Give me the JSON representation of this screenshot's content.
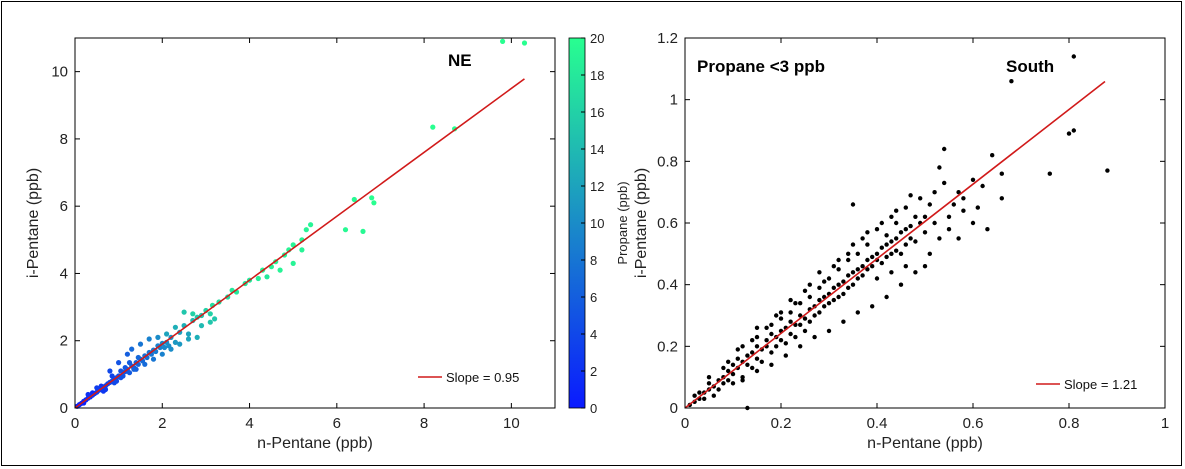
{
  "chart_data": [
    {
      "type": "scatter",
      "xlabel": "n-Pentane (ppb)",
      "ylabel": "i-Pentane (ppb)",
      "xlim": [
        0,
        11
      ],
      "ylim": [
        0,
        11
      ],
      "xticks": [
        "0",
        "2",
        "4",
        "6",
        "8",
        "10"
      ],
      "yticks": [
        "0",
        "2",
        "4",
        "6",
        "8",
        "10"
      ],
      "annotation": "NE",
      "colorbar": {
        "label": "Propane (ppb)",
        "range": [
          0,
          20
        ],
        "ticks": [
          "0",
          "2",
          "4",
          "6",
          "8",
          "10",
          "12",
          "14",
          "16",
          "18",
          "20"
        ],
        "color_low": "#0a1aff",
        "color_high": "#28ff90"
      },
      "fit": {
        "slope": 0.95,
        "x_range": [
          0,
          10.3
        ],
        "color": "#d11a1a",
        "legend_label": "Slope = 0.95"
      },
      "points": [
        [
          0.05,
          0.05,
          0.5
        ],
        [
          0.1,
          0.1,
          0.7
        ],
        [
          0.15,
          0.14,
          0.8
        ],
        [
          0.2,
          0.2,
          1
        ],
        [
          0.25,
          0.24,
          1.2
        ],
        [
          0.3,
          0.29,
          1.4
        ],
        [
          0.35,
          0.33,
          1.6
        ],
        [
          0.4,
          0.38,
          2
        ],
        [
          0.45,
          0.43,
          2.2
        ],
        [
          0.5,
          0.47,
          2.5
        ],
        [
          0.55,
          0.53,
          2.8
        ],
        [
          0.6,
          0.56,
          3
        ],
        [
          0.65,
          0.62,
          3.1
        ],
        [
          0.7,
          0.66,
          3.3
        ],
        [
          0.75,
          0.72,
          3.5
        ],
        [
          0.8,
          0.76,
          3.8
        ],
        [
          0.85,
          0.8,
          4
        ],
        [
          0.9,
          0.86,
          4.2
        ],
        [
          0.95,
          0.9,
          4.4
        ],
        [
          1.0,
          0.95,
          4.6
        ],
        [
          0.3,
          0.4,
          2
        ],
        [
          0.5,
          0.6,
          3
        ],
        [
          0.7,
          0.55,
          3
        ],
        [
          0.9,
          0.75,
          4
        ],
        [
          1.05,
          1.1,
          5
        ],
        [
          1.1,
          0.95,
          5
        ],
        [
          1.15,
          1.08,
          5.2
        ],
        [
          1.2,
          1.15,
          5.5
        ],
        [
          1.25,
          1.05,
          5.6
        ],
        [
          1.3,
          1.25,
          6
        ],
        [
          1.35,
          1.2,
          6
        ],
        [
          1.4,
          1.35,
          6.5
        ],
        [
          1.45,
          1.3,
          6.5
        ],
        [
          1.5,
          1.45,
          7
        ],
        [
          1.55,
          1.4,
          7
        ],
        [
          1.6,
          1.55,
          7.5
        ],
        [
          1.65,
          1.5,
          7.5
        ],
        [
          1.7,
          1.65,
          8
        ],
        [
          1.75,
          1.6,
          8
        ],
        [
          1.8,
          1.72,
          8.5
        ],
        [
          1.85,
          1.68,
          8.5
        ],
        [
          1.9,
          1.85,
          9
        ],
        [
          1.95,
          1.8,
          9
        ],
        [
          2.0,
          1.92,
          9.5
        ],
        [
          2.05,
          1.8,
          9.5
        ],
        [
          2.1,
          1.95,
          10
        ],
        [
          2.15,
          1.85,
          10
        ],
        [
          2.2,
          2.1,
          10.5
        ],
        [
          2.3,
          1.95,
          11
        ],
        [
          2.4,
          2.25,
          11.5
        ],
        [
          1.2,
          1.6,
          6
        ],
        [
          1.3,
          1.75,
          7
        ],
        [
          1.5,
          1.9,
          8
        ],
        [
          1.7,
          2.05,
          9
        ],
        [
          1.9,
          2.1,
          10
        ],
        [
          2.1,
          2.2,
          12
        ],
        [
          2.3,
          2.4,
          13
        ],
        [
          2.5,
          2.45,
          13
        ],
        [
          2.6,
          2.2,
          12
        ],
        [
          2.7,
          2.6,
          14
        ],
        [
          2.8,
          2.7,
          15
        ],
        [
          2.9,
          2.75,
          15
        ],
        [
          3.0,
          2.9,
          16
        ],
        [
          3.1,
          2.8,
          16
        ],
        [
          3.15,
          3.05,
          17
        ],
        [
          2.5,
          2.85,
          15
        ],
        [
          2.7,
          2.8,
          16
        ],
        [
          2.9,
          2.45,
          14
        ],
        [
          3.1,
          2.55,
          15
        ],
        [
          3.2,
          2.65,
          15
        ],
        [
          1.0,
          1.35,
          5
        ],
        [
          0.8,
          1.1,
          4
        ],
        [
          1.4,
          1.15,
          6
        ],
        [
          1.6,
          1.3,
          7
        ],
        [
          1.8,
          1.45,
          8
        ],
        [
          2.0,
          1.6,
          9
        ],
        [
          2.2,
          1.75,
          10
        ],
        [
          2.4,
          1.9,
          11
        ],
        [
          2.6,
          2.05,
          12
        ],
        [
          2.8,
          2.1,
          13
        ],
        [
          3.3,
          3.15,
          17
        ],
        [
          3.5,
          3.3,
          17
        ],
        [
          3.7,
          3.45,
          18
        ],
        [
          3.9,
          3.7,
          18
        ],
        [
          4.0,
          3.8,
          18
        ],
        [
          4.2,
          3.85,
          18.5
        ],
        [
          4.3,
          4.1,
          19
        ],
        [
          4.5,
          4.2,
          19
        ],
        [
          4.6,
          4.35,
          19
        ],
        [
          4.8,
          4.55,
          19
        ],
        [
          4.9,
          4.7,
          19
        ],
        [
          5.0,
          4.85,
          19
        ],
        [
          5.2,
          5.0,
          19
        ],
        [
          5.3,
          5.3,
          19
        ],
        [
          5.4,
          5.45,
          19
        ],
        [
          4.4,
          3.9,
          18
        ],
        [
          4.7,
          4.1,
          19
        ],
        [
          5.0,
          4.3,
          19
        ],
        [
          5.2,
          4.7,
          19
        ],
        [
          3.6,
          3.5,
          18
        ],
        [
          6.2,
          5.3,
          19.5
        ],
        [
          6.4,
          6.2,
          19.5
        ],
        [
          6.6,
          5.25,
          19.5
        ],
        [
          6.8,
          6.25,
          20
        ],
        [
          6.85,
          6.1,
          20
        ],
        [
          8.2,
          8.35,
          20
        ],
        [
          8.7,
          8.3,
          20
        ],
        [
          9.8,
          10.9,
          20
        ],
        [
          10.3,
          10.85,
          20
        ],
        [
          0.2,
          0.15,
          0.6
        ],
        [
          0.4,
          0.45,
          1.5
        ],
        [
          0.6,
          0.65,
          2.5
        ],
        [
          0.65,
          0.5,
          2.6
        ],
        [
          0.85,
          0.95,
          3.8
        ],
        [
          0.95,
          0.8,
          4.1
        ],
        [
          1.05,
          0.9,
          4.8
        ],
        [
          1.15,
          1.2,
          5.3
        ],
        [
          1.25,
          1.35,
          5.8
        ],
        [
          1.35,
          1.15,
          6.2
        ],
        [
          1.45,
          1.5,
          6.8
        ]
      ]
    },
    {
      "type": "scatter",
      "xlabel": "n-Pentane (ppb)",
      "ylabel": "i-Pentane (ppb)",
      "xlim": [
        0,
        1
      ],
      "ylim": [
        0,
        1.2
      ],
      "xticks": [
        "0",
        "0.2",
        "0.4",
        "0.6",
        "0.8",
        "1"
      ],
      "yticks": [
        "0",
        "0.2",
        "0.4",
        "0.6",
        "0.8",
        "1",
        "1.2"
      ],
      "annotation_left": "Propane <3 ppb",
      "annotation_right": "South",
      "point_color": "#000000",
      "fit": {
        "slope": 1.21,
        "x_range": [
          0,
          0.875
        ],
        "color": "#d11a1a",
        "legend_label": "Slope = 1.21"
      },
      "points": [
        [
          0.01,
          0.01
        ],
        [
          0.02,
          0.02
        ],
        [
          0.02,
          0.04
        ],
        [
          0.03,
          0.03
        ],
        [
          0.03,
          0.05
        ],
        [
          0.04,
          0.05
        ],
        [
          0.04,
          0.03
        ],
        [
          0.05,
          0.06
        ],
        [
          0.05,
          0.08
        ],
        [
          0.06,
          0.07
        ],
        [
          0.06,
          0.04
        ],
        [
          0.07,
          0.09
        ],
        [
          0.07,
          0.06
        ],
        [
          0.08,
          0.1
        ],
        [
          0.08,
          0.08
        ],
        [
          0.09,
          0.12
        ],
        [
          0.09,
          0.09
        ],
        [
          0.1,
          0.11
        ],
        [
          0.1,
          0.14
        ],
        [
          0.1,
          0.08
        ],
        [
          0.11,
          0.13
        ],
        [
          0.11,
          0.16
        ],
        [
          0.12,
          0.15
        ],
        [
          0.12,
          0.1
        ],
        [
          0.13,
          0.17
        ],
        [
          0.13,
          0.14
        ],
        [
          0.14,
          0.18
        ],
        [
          0.14,
          0.13
        ],
        [
          0.15,
          0.2
        ],
        [
          0.15,
          0.16
        ],
        [
          0.15,
          0.23
        ],
        [
          0.16,
          0.19
        ],
        [
          0.16,
          0.15
        ],
        [
          0.17,
          0.22
        ],
        [
          0.17,
          0.2
        ],
        [
          0.18,
          0.24
        ],
        [
          0.18,
          0.18
        ],
        [
          0.18,
          0.27
        ],
        [
          0.19,
          0.23
        ],
        [
          0.19,
          0.2
        ],
        [
          0.2,
          0.25
        ],
        [
          0.2,
          0.22
        ],
        [
          0.2,
          0.29
        ],
        [
          0.21,
          0.26
        ],
        [
          0.21,
          0.21
        ],
        [
          0.22,
          0.28
        ],
        [
          0.22,
          0.24
        ],
        [
          0.22,
          0.31
        ],
        [
          0.23,
          0.27
        ],
        [
          0.23,
          0.23
        ],
        [
          0.24,
          0.3
        ],
        [
          0.24,
          0.27
        ],
        [
          0.24,
          0.34
        ],
        [
          0.25,
          0.29
        ],
        [
          0.25,
          0.25
        ],
        [
          0.26,
          0.32
        ],
        [
          0.26,
          0.36
        ],
        [
          0.26,
          0.28
        ],
        [
          0.27,
          0.33
        ],
        [
          0.27,
          0.3
        ],
        [
          0.28,
          0.35
        ],
        [
          0.28,
          0.31
        ],
        [
          0.28,
          0.39
        ],
        [
          0.29,
          0.36
        ],
        [
          0.29,
          0.33
        ],
        [
          0.3,
          0.37
        ],
        [
          0.3,
          0.42
        ],
        [
          0.3,
          0.34
        ],
        [
          0.31,
          0.39
        ],
        [
          0.31,
          0.35
        ],
        [
          0.32,
          0.4
        ],
        [
          0.32,
          0.36
        ],
        [
          0.32,
          0.45
        ],
        [
          0.33,
          0.41
        ],
        [
          0.33,
          0.37
        ],
        [
          0.34,
          0.43
        ],
        [
          0.34,
          0.39
        ],
        [
          0.34,
          0.48
        ],
        [
          0.35,
          0.44
        ],
        [
          0.35,
          0.4
        ],
        [
          0.35,
          0.66
        ],
        [
          0.36,
          0.45
        ],
        [
          0.36,
          0.42
        ],
        [
          0.36,
          0.5
        ],
        [
          0.37,
          0.46
        ],
        [
          0.37,
          0.43
        ],
        [
          0.38,
          0.48
        ],
        [
          0.38,
          0.45
        ],
        [
          0.38,
          0.53
        ],
        [
          0.39,
          0.49
        ],
        [
          0.39,
          0.46
        ],
        [
          0.4,
          0.5
        ],
        [
          0.4,
          0.48
        ],
        [
          0.4,
          0.42
        ],
        [
          0.41,
          0.52
        ],
        [
          0.41,
          0.47
        ],
        [
          0.42,
          0.53
        ],
        [
          0.42,
          0.49
        ],
        [
          0.42,
          0.56
        ],
        [
          0.43,
          0.54
        ],
        [
          0.43,
          0.5
        ],
        [
          0.44,
          0.55
        ],
        [
          0.44,
          0.51
        ],
        [
          0.44,
          0.6
        ],
        [
          0.45,
          0.57
        ],
        [
          0.45,
          0.5
        ],
        [
          0.46,
          0.58
        ],
        [
          0.46,
          0.53
        ],
        [
          0.47,
          0.59
        ],
        [
          0.47,
          0.55
        ],
        [
          0.48,
          0.62
        ],
        [
          0.48,
          0.54
        ],
        [
          0.49,
          0.6
        ],
        [
          0.5,
          0.62
        ],
        [
          0.5,
          0.57
        ],
        [
          0.51,
          0.66
        ],
        [
          0.52,
          0.6
        ],
        [
          0.53,
          0.78
        ],
        [
          0.54,
          0.84
        ],
        [
          0.55,
          0.62
        ],
        [
          0.56,
          0.66
        ],
        [
          0.57,
          0.7
        ],
        [
          0.58,
          0.64
        ],
        [
          0.6,
          0.74
        ],
        [
          0.62,
          0.72
        ],
        [
          0.63,
          0.58
        ],
        [
          0.64,
          0.82
        ],
        [
          0.66,
          0.76
        ],
        [
          0.68,
          1.06
        ],
        [
          0.76,
          0.76
        ],
        [
          0.8,
          0.89
        ],
        [
          0.81,
          0.9
        ],
        [
          0.81,
          1.14
        ],
        [
          0.88,
          0.77
        ],
        [
          0.13,
          0.0
        ],
        [
          0.05,
          0.1
        ],
        [
          0.08,
          0.13
        ],
        [
          0.11,
          0.19
        ],
        [
          0.14,
          0.22
        ],
        [
          0.17,
          0.26
        ],
        [
          0.2,
          0.31
        ],
        [
          0.23,
          0.34
        ],
        [
          0.26,
          0.4
        ],
        [
          0.29,
          0.41
        ],
        [
          0.32,
          0.48
        ],
        [
          0.35,
          0.53
        ],
        [
          0.38,
          0.57
        ],
        [
          0.41,
          0.6
        ],
        [
          0.44,
          0.64
        ],
        [
          0.47,
          0.69
        ],
        [
          0.12,
          0.09
        ],
        [
          0.15,
          0.12
        ],
        [
          0.18,
          0.14
        ],
        [
          0.21,
          0.17
        ],
        [
          0.24,
          0.2
        ],
        [
          0.27,
          0.23
        ],
        [
          0.3,
          0.25
        ],
        [
          0.33,
          0.28
        ],
        [
          0.36,
          0.31
        ],
        [
          0.39,
          0.33
        ],
        [
          0.42,
          0.36
        ],
        [
          0.45,
          0.4
        ],
        [
          0.48,
          0.44
        ],
        [
          0.5,
          0.46
        ],
        [
          0.52,
          0.7
        ],
        [
          0.54,
          0.73
        ],
        [
          0.57,
          0.55
        ],
        [
          0.6,
          0.6
        ],
        [
          0.43,
          0.44
        ],
        [
          0.46,
          0.46
        ],
        [
          0.09,
          0.15
        ],
        [
          0.12,
          0.2
        ],
        [
          0.15,
          0.26
        ],
        [
          0.19,
          0.3
        ],
        [
          0.22,
          0.35
        ],
        [
          0.25,
          0.38
        ],
        [
          0.28,
          0.44
        ],
        [
          0.31,
          0.46
        ],
        [
          0.34,
          0.5
        ],
        [
          0.37,
          0.55
        ],
        [
          0.4,
          0.58
        ],
        [
          0.43,
          0.62
        ],
        [
          0.46,
          0.65
        ],
        [
          0.49,
          0.68
        ],
        [
          0.51,
          0.5
        ],
        [
          0.53,
          0.55
        ],
        [
          0.55,
          0.58
        ],
        [
          0.58,
          0.68
        ],
        [
          0.61,
          0.65
        ],
        [
          0.66,
          0.68
        ]
      ]
    }
  ]
}
